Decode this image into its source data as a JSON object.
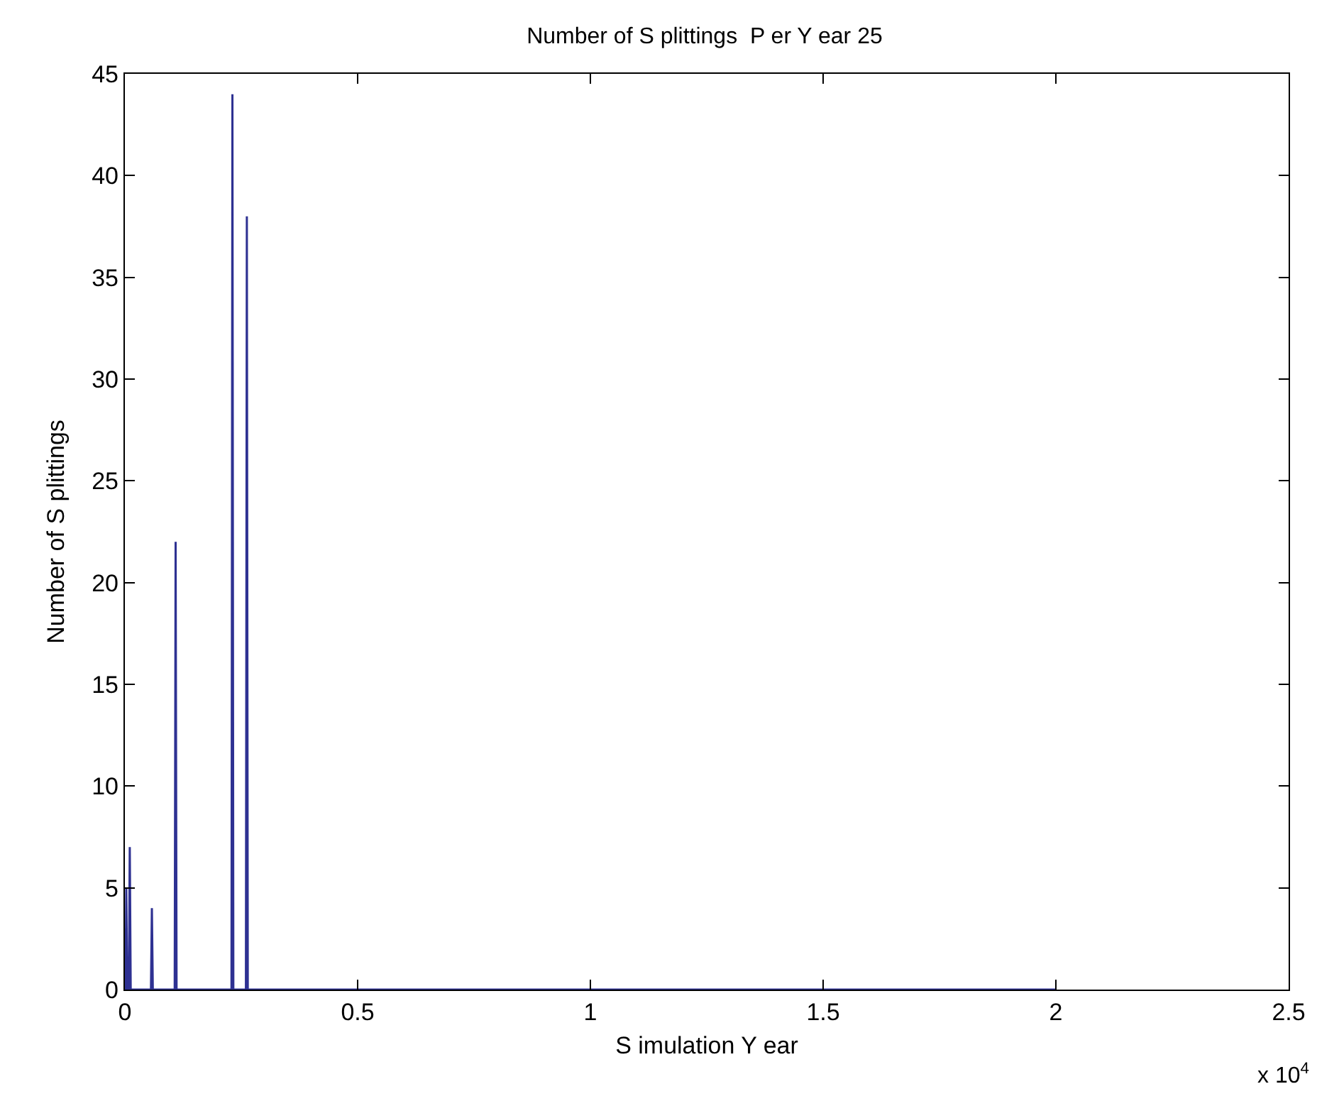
{
  "chart_data": {
    "type": "line",
    "title": "Number of S plittings  P er Y ear 25",
    "xlabel": "S imulation Y ear",
    "ylabel": "Number of S plittings",
    "annotations": [
      "x 10$^{4}$"
    ],
    "x": [
      0,
      0.0015,
      0.003,
      0.005,
      0.0085,
      0.0105,
      0.0125,
      0.056,
      0.058,
      0.06,
      0.107,
      0.109,
      0.111,
      0.229,
      0.231,
      0.233,
      0.26,
      0.262,
      0.264,
      2.0
    ],
    "series": [
      {
        "color": "#2e3192",
        "values": [
          3,
          0,
          5,
          0,
          0,
          7,
          0,
          0,
          4,
          0,
          0,
          22,
          0,
          0,
          44,
          0,
          0,
          38,
          0,
          0
        ]
      }
    ],
    "xlim": [
      0,
      2.5
    ],
    "xticks": [
      0,
      0.5,
      1,
      1.5,
      2,
      2.5
    ],
    "ylim": [
      0,
      45
    ],
    "yticks": [
      0,
      5,
      10,
      15,
      20,
      25,
      30,
      35,
      40,
      45
    ],
    "line_style": "solid"
  }
}
